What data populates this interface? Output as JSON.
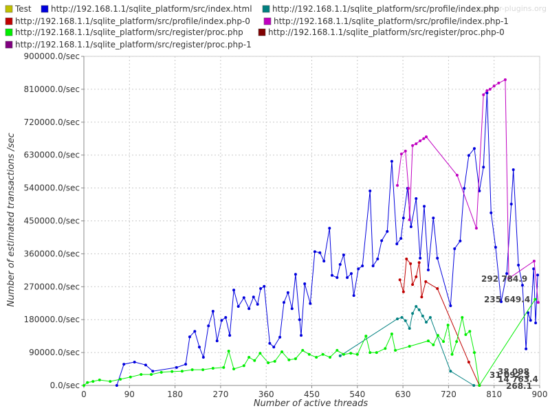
{
  "chart_data": {
    "type": "line",
    "watermark": "jmeter-plugins.org",
    "x_label": "Number of active threads",
    "y_label": "Number of estimated transactions /sec",
    "xlim": [
      0,
      900
    ],
    "ylim": [
      0,
      900000
    ],
    "xticks": [
      0,
      90,
      180,
      270,
      360,
      450,
      540,
      630,
      720,
      810,
      900
    ],
    "yticks": [
      {
        "value": 0,
        "label": "0.0/sec"
      },
      {
        "value": 90000,
        "label": "90000.0/sec"
      },
      {
        "value": 180000,
        "label": "180000.0/sec"
      },
      {
        "value": 270000,
        "label": "270000.0/sec"
      },
      {
        "value": 360000,
        "label": "360000.0/sec"
      },
      {
        "value": 450000,
        "label": "450000.0/sec"
      },
      {
        "value": 540000,
        "label": "540000.0/sec"
      },
      {
        "value": 630000,
        "label": "630000.0/sec"
      },
      {
        "value": 720000,
        "label": "720000.0/sec"
      },
      {
        "value": 810000,
        "label": "810000.0/sec"
      },
      {
        "value": 900000,
        "label": "900000.0/sec"
      }
    ],
    "grid": true,
    "annotations": [
      "292 784.9",
      "235 649.4",
      "38 098",
      "31 092.3",
      "14 763.4",
      "268.1"
    ],
    "series": [
      {
        "name": "Test",
        "color": "#c0c000",
        "x": [],
        "values": []
      },
      {
        "name": "http://192.168.1.1/sqlite_platform/src/index.html",
        "color": "#0000dd",
        "x": [
          65,
          79,
          100,
          122,
          136,
          183,
          201,
          209,
          219,
          228,
          236,
          246,
          255,
          263,
          272,
          280,
          288,
          296,
          305,
          316,
          326,
          335,
          343,
          349,
          356,
          367,
          375,
          387,
          395,
          403,
          411,
          418,
          426,
          429,
          436,
          447,
          456,
          466,
          474,
          485,
          490,
          500,
          506,
          513,
          520,
          528,
          533,
          542,
          550,
          565,
          571,
          580,
          588,
          599,
          608,
          618,
          626,
          631,
          639,
          646,
          656,
          664,
          672,
          680,
          690,
          698,
          724,
          732,
          743,
          751,
          760,
          771,
          781,
          789,
          796,
          804,
          813,
          824,
          835,
          844,
          848,
          858,
          866,
          873,
          877,
          882,
          888,
          892,
          896
        ],
        "values": [
          0,
          58000,
          64000,
          56000,
          39000,
          49000,
          58000,
          133000,
          148000,
          105000,
          77000,
          163000,
          203000,
          122000,
          178000,
          186000,
          137000,
          261000,
          216000,
          240000,
          210000,
          242000,
          222000,
          265000,
          271000,
          115000,
          105000,
          132000,
          227000,
          254000,
          210000,
          304000,
          180000,
          137000,
          278000,
          224000,
          366000,
          363000,
          340000,
          430000,
          301000,
          295000,
          331000,
          357000,
          295000,
          306000,
          246000,
          319000,
          327000,
          532000,
          327000,
          346000,
          396000,
          421000,
          613000,
          387000,
          402000,
          458000,
          539000,
          434000,
          511000,
          348000,
          490000,
          316000,
          458000,
          348000,
          218000,
          374000,
          395000,
          539000,
          629000,
          648000,
          532000,
          597000,
          800000,
          472000,
          378000,
          229000,
          306000,
          496000,
          590000,
          329000,
          274000,
          100000,
          199000,
          178000,
          319000,
          171000,
          302000
        ]
      },
      {
        "name": "http://192.168.1.1/sqlite_platform/src/profile/index.php",
        "color": "#008080",
        "x": [
          506,
          619,
          628,
          635,
          643,
          649,
          656,
          662,
          669,
          676,
          684,
          724,
          770
        ],
        "values": [
          81000,
          182000,
          186000,
          177000,
          156000,
          197000,
          216000,
          207000,
          190000,
          173000,
          186000,
          39000,
          0
        ]
      },
      {
        "name": "http://192.168.1.1/sqlite_platform/src/profile/index.php-0",
        "color": "#c00000",
        "x": [
          624,
          631,
          637,
          645,
          649,
          656,
          662,
          667,
          675,
          698,
          760,
          781
        ],
        "values": [
          289000,
          256000,
          346000,
          333000,
          276000,
          297000,
          336000,
          242000,
          284000,
          265000,
          64000,
          0
        ]
      },
      {
        "name": "http://192.168.1.1/sqlite_platform/src/profile/index.php-1",
        "color": "#c000c0",
        "x": [
          619,
          627,
          635,
          641,
          643,
          649,
          656,
          664,
          671,
          676,
          737,
          775,
          789,
          796,
          802,
          810,
          819,
          832,
          839,
          889,
          897
        ],
        "values": [
          547000,
          633000,
          641000,
          539000,
          453000,
          656000,
          661000,
          669000,
          675000,
          680000,
          575000,
          430000,
          795000,
          806000,
          810000,
          819000,
          827000,
          836000,
          292784.9,
          340000,
          227000
        ]
      },
      {
        "name": "http://192.168.1.1/sqlite_platform/src/register/proc.php",
        "color": "#00ee00",
        "x": [
          0,
          7,
          18,
          31,
          52,
          72,
          92,
          113,
          133,
          153,
          174,
          194,
          214,
          235,
          255,
          276,
          286,
          296,
          316,
          326,
          337,
          348,
          364,
          377,
          391,
          405,
          418,
          432,
          445,
          459,
          472,
          486,
          500,
          513,
          527,
          540,
          557,
          565,
          578,
          595,
          608,
          615,
          643,
          680,
          690,
          699,
          710,
          719,
          727,
          736,
          747,
          754,
          762,
          771,
          781,
          891
        ],
        "values": [
          0,
          8000,
          11000,
          15000,
          11000,
          17000,
          23000,
          30000,
          30000,
          36000,
          38000,
          39000,
          43000,
          43000,
          47000,
          49000,
          94000,
          45000,
          54000,
          77000,
          68000,
          88000,
          62000,
          66000,
          92000,
          70000,
          73000,
          96000,
          85000,
          77000,
          85000,
          77000,
          96000,
          85000,
          88000,
          85000,
          135000,
          90000,
          90000,
          101000,
          141000,
          96000,
          107000,
          122000,
          111000,
          137000,
          120000,
          165000,
          85000,
          120000,
          186000,
          139000,
          148000,
          90000,
          0,
          235649.4
        ]
      },
      {
        "name": "http://192.168.1.1/sqlite_platform/src/register/proc.php-0",
        "color": "#800000",
        "x": [],
        "values": []
      },
      {
        "name": "http://192.168.1.1/sqlite_platform/src/register/proc.php-1",
        "color": "#800080",
        "x": [],
        "values": []
      }
    ]
  }
}
